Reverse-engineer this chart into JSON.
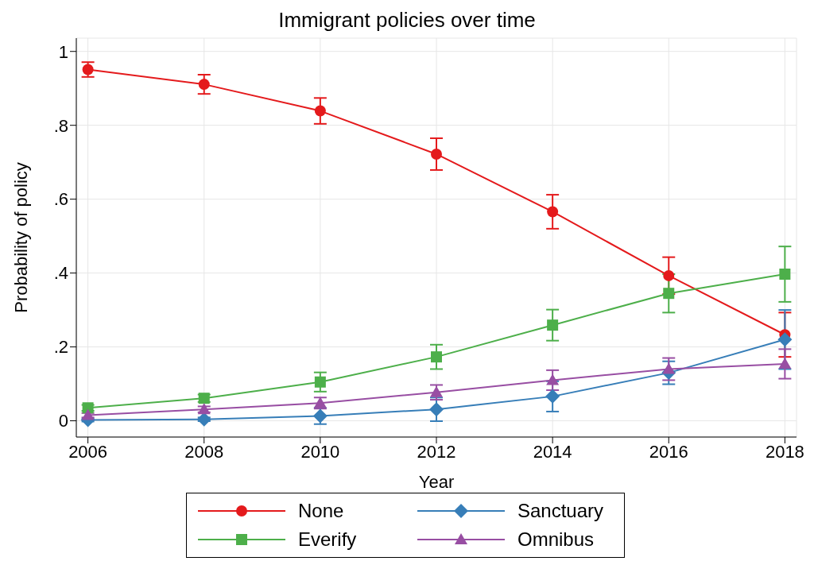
{
  "chart_data": {
    "type": "line",
    "title": "Immigrant policies over time",
    "xlabel": "Year",
    "ylabel": "Probability of policy",
    "x": [
      2006,
      2008,
      2010,
      2012,
      2014,
      2016,
      2018
    ],
    "series": [
      {
        "name": "None",
        "color": "#e41a1c",
        "marker": "circle",
        "values": [
          0.951,
          0.911,
          0.839,
          0.722,
          0.566,
          0.393,
          0.233
        ],
        "errors": [
          0.02,
          0.026,
          0.035,
          0.043,
          0.046,
          0.05,
          0.06
        ]
      },
      {
        "name": "Everify",
        "color": "#4daf4a",
        "marker": "square",
        "values": [
          0.035,
          0.061,
          0.105,
          0.173,
          0.259,
          0.345,
          0.397
        ],
        "errors": [
          0.008,
          0.01,
          0.026,
          0.033,
          0.042,
          0.052,
          0.075
        ]
      },
      {
        "name": "Sanctuary",
        "color": "#377eb8",
        "marker": "diamond",
        "values": [
          0.002,
          0.004,
          0.013,
          0.031,
          0.066,
          0.13,
          0.22
        ],
        "errors": [
          0.004,
          0.005,
          0.022,
          0.032,
          0.041,
          0.031,
          0.08
        ]
      },
      {
        "name": "Omnibus",
        "color": "#984ea3",
        "marker": "triangle",
        "values": [
          0.015,
          0.031,
          0.048,
          0.077,
          0.11,
          0.14,
          0.154
        ],
        "errors": [
          0.006,
          0.008,
          0.015,
          0.02,
          0.027,
          0.03,
          0.04
        ]
      }
    ],
    "xlim": [
      2005.8,
      2018.2
    ],
    "xticks": [
      2006,
      2008,
      2010,
      2012,
      2014,
      2016,
      2018
    ],
    "ylim": [
      -0.044,
      1.036
    ],
    "yticks": [
      {
        "value": 0,
        "label": "0"
      },
      {
        "value": 0.2,
        "label": ".2"
      },
      {
        "value": 0.4,
        "label": ".4"
      },
      {
        "value": 0.6,
        "label": ".6"
      },
      {
        "value": 0.8,
        "label": ".8"
      },
      {
        "value": 1,
        "label": "1"
      }
    ],
    "grid": true,
    "legend": "bottom"
  }
}
